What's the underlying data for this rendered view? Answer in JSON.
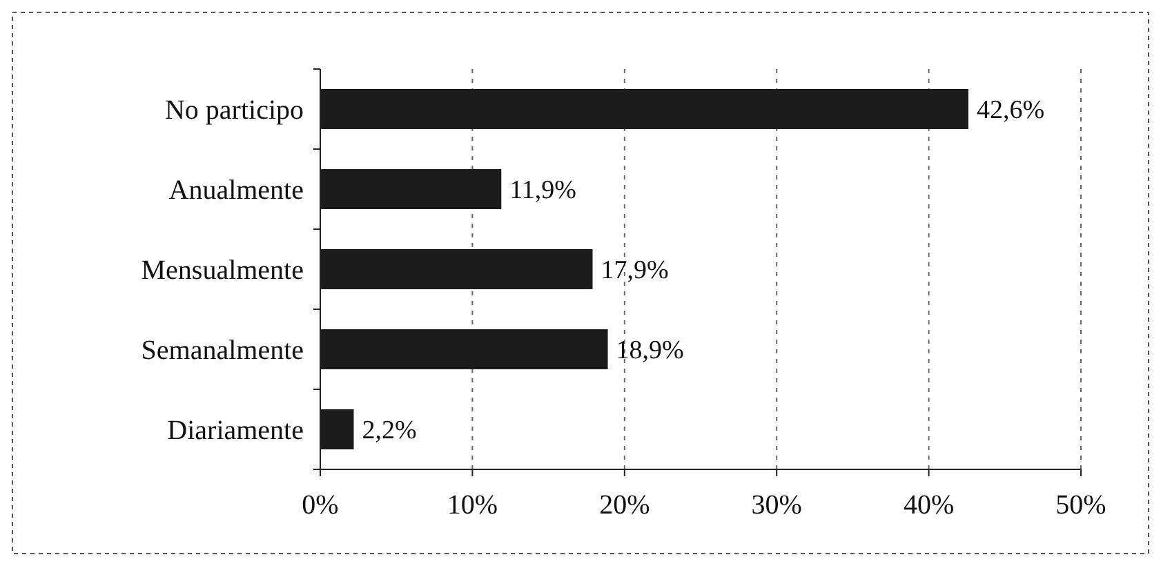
{
  "chart_data": {
    "type": "bar",
    "orientation": "horizontal",
    "categories": [
      "No participo",
      "Anualmente",
      "Mensualmente",
      "Semanalmente",
      "Diariamente"
    ],
    "values": [
      42.6,
      11.9,
      17.9,
      18.9,
      2.2
    ],
    "value_labels": [
      "42,6%",
      "11,9%",
      "17,9%",
      "18,9%",
      "2,2%"
    ],
    "color": "#1c1c1c",
    "xlim": [
      0,
      50
    ],
    "xticks": [
      {
        "value": 0,
        "label": "0%"
      },
      {
        "value": 10,
        "label": "10%"
      },
      {
        "value": 20,
        "label": "20%"
      },
      {
        "value": 30,
        "label": "30%"
      },
      {
        "value": 40,
        "label": "40%"
      },
      {
        "value": 50,
        "label": "50%"
      }
    ],
    "grid": "x"
  }
}
